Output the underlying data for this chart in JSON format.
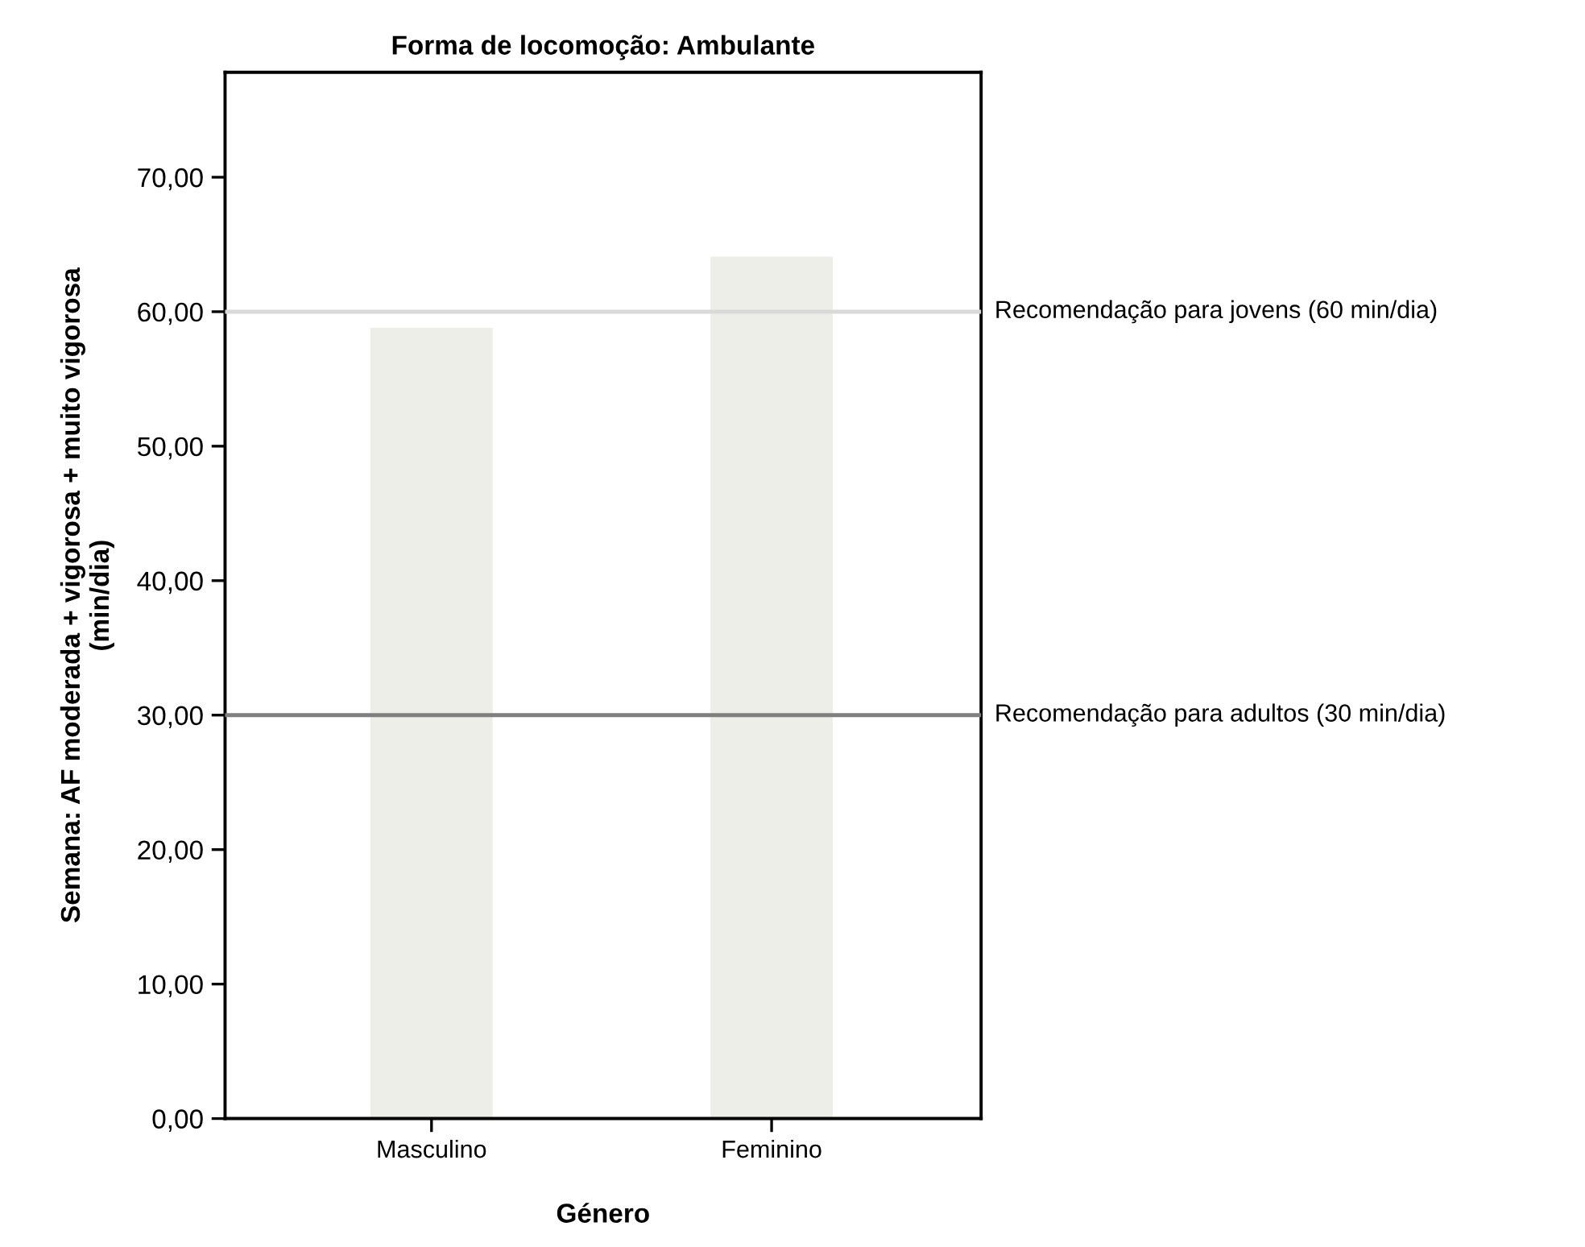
{
  "chart_data": {
    "type": "bar",
    "title": "Forma de locomoção: Ambulante",
    "xlabel": "Género",
    "ylabel": "Semana: AF moderada + vigorosa + muito vigorosa\n(min/dia)",
    "categories": [
      "Masculino",
      "Feminino"
    ],
    "values": [
      58.8,
      64.1
    ],
    "color": "#eeeee9",
    "ylim": [
      0,
      77.8
    ],
    "yticks": [
      {
        "value": 0,
        "label": "0,00"
      },
      {
        "value": 10,
        "label": "10,00"
      },
      {
        "value": 20,
        "label": "20,00"
      },
      {
        "value": 30,
        "label": "30,00"
      },
      {
        "value": 40,
        "label": "40,00"
      },
      {
        "value": 50,
        "label": "50,00"
      },
      {
        "value": 60,
        "label": "60,00"
      },
      {
        "value": 70,
        "label": "70,00"
      }
    ],
    "ref_lines": [
      {
        "axis": "y",
        "value": 60,
        "label": "Recomendação para jovens (60 min/dia)",
        "color": "#d9d9d9"
      },
      {
        "axis": "y",
        "value": 30,
        "label": "Recomendação para adultos (30 min/dia)",
        "color": "#7f7f7f"
      }
    ],
    "grid": false,
    "legend": false
  }
}
